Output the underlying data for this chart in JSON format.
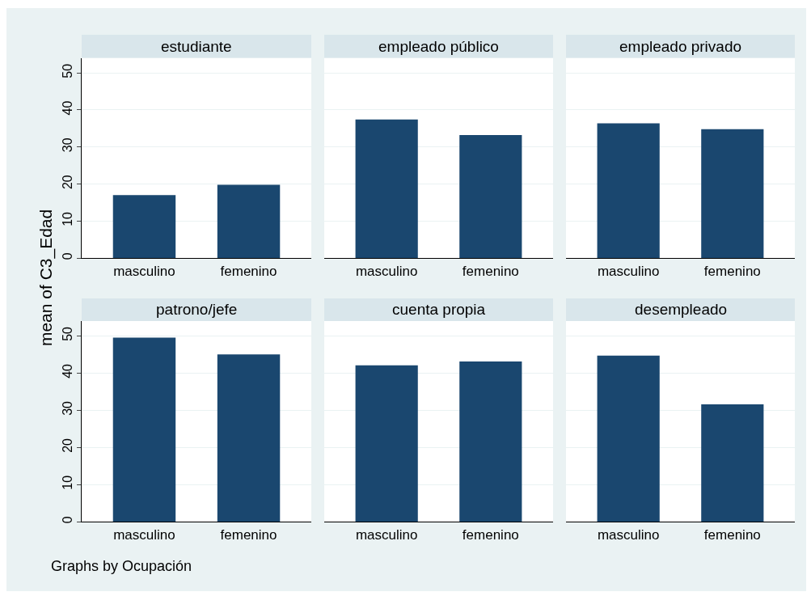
{
  "chart_data": [
    {
      "type": "bar",
      "title": "estudiante",
      "ylabel": "mean of C3_Edad",
      "categories": [
        "masculino",
        "femenino"
      ],
      "values": [
        17.0,
        19.8
      ],
      "color": "#1a476f",
      "ylim": [
        0,
        54
      ],
      "yticks": [
        0,
        10,
        20,
        30,
        40,
        50
      ],
      "grid": "y"
    },
    {
      "type": "bar",
      "title": "empleado público",
      "categories": [
        "masculino",
        "femenino"
      ],
      "values": [
        37.4,
        33.2
      ],
      "color": "#1a476f",
      "ylim": [
        0,
        54
      ],
      "yticks": [
        0,
        10,
        20,
        30,
        40,
        50
      ],
      "grid": "y",
      "tick_labels": "x"
    },
    {
      "type": "bar",
      "title": "empleado privado",
      "categories": [
        "masculino",
        "femenino"
      ],
      "values": [
        36.4,
        34.8
      ],
      "color": "#1a476f",
      "ylim": [
        0,
        54
      ],
      "yticks": [
        0,
        10,
        20,
        30,
        40,
        50
      ],
      "grid": "y",
      "tick_labels": "x"
    },
    {
      "type": "bar",
      "title": "patrono/jefe",
      "categories": [
        "masculino",
        "femenino"
      ],
      "values": [
        49.5,
        45.0
      ],
      "color": "#1a476f",
      "ylim": [
        0,
        54
      ],
      "yticks": [
        0,
        10,
        20,
        30,
        40,
        50
      ],
      "grid": "y"
    },
    {
      "type": "bar",
      "title": "cuenta propia",
      "categories": [
        "masculino",
        "femenino"
      ],
      "values": [
        42.1,
        43.1
      ],
      "color": "#1a476f",
      "ylim": [
        0,
        54
      ],
      "yticks": [
        0,
        10,
        20,
        30,
        40,
        50
      ],
      "grid": "y",
      "tick_labels": "x"
    },
    {
      "type": "bar",
      "title": "desempleado",
      "categories": [
        "masculino",
        "femenino"
      ],
      "values": [
        44.7,
        31.6
      ],
      "color": "#1a476f",
      "ylim": [
        0,
        54
      ],
      "yticks": [
        0,
        10,
        20,
        30,
        40,
        50
      ],
      "grid": "y",
      "tick_labels": "x",
      "annotations": [
        "Graphs by Ocupación"
      ]
    }
  ]
}
